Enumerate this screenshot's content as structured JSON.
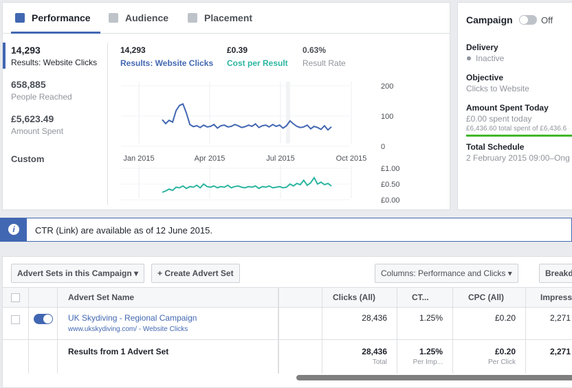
{
  "tabs": [
    "Performance",
    "Audience",
    "Placement"
  ],
  "summary": [
    {
      "value": "14,293",
      "label": "Results: Website Clicks"
    },
    {
      "value": "658,885",
      "label": "People Reached"
    },
    {
      "value": "£5,623.49",
      "label": "Amount Spent"
    }
  ],
  "custom": "Custom",
  "metrics": [
    {
      "value": "14,293",
      "label": "Results: Website Clicks"
    },
    {
      "value": "£0.39",
      "label": "Cost per Result"
    },
    {
      "value": "0.63%",
      "label": "Result Rate"
    }
  ],
  "chart": {
    "type": "line",
    "categories": [
      "Jan 2015",
      "Apr 2015",
      "Jul 2015",
      "Oct 2015"
    ],
    "clicks": {
      "color": "#4267b2",
      "ylim": [
        0,
        200
      ],
      "yticks": [
        0,
        100,
        200
      ],
      "values": [
        88,
        75,
        86,
        80,
        118,
        135,
        140,
        110,
        72,
        65,
        68,
        62,
        70,
        64,
        66,
        72,
        60,
        68,
        70,
        64,
        66,
        72,
        68,
        62,
        65,
        70,
        66,
        74,
        62,
        68,
        70,
        64,
        72,
        66,
        70,
        60,
        68,
        84,
        74,
        66,
        62,
        64,
        70,
        58,
        66,
        62,
        56,
        68,
        54,
        64
      ]
    },
    "cost": {
      "color": "#2bb5a0",
      "ylim": [
        0,
        1
      ],
      "yticks": [
        {
          "value": 0,
          "label": "£0.00"
        },
        {
          "value": 0.5,
          "label": "£0.50"
        },
        {
          "value": 1,
          "label": "£1.00"
        }
      ],
      "values": [
        0.24,
        0.28,
        0.34,
        0.3,
        0.4,
        0.38,
        0.44,
        0.36,
        0.42,
        0.4,
        0.46,
        0.38,
        0.5,
        0.42,
        0.4,
        0.44,
        0.38,
        0.42,
        0.4,
        0.46,
        0.38,
        0.42,
        0.44,
        0.4,
        0.38,
        0.42,
        0.4,
        0.44,
        0.36,
        0.42,
        0.4,
        0.44,
        0.38,
        0.4,
        0.42,
        0.38,
        0.4,
        0.5,
        0.44,
        0.52,
        0.48,
        0.62,
        0.46,
        0.54,
        0.7,
        0.5,
        0.56,
        0.48,
        0.52,
        0.44
      ]
    }
  },
  "campaign": {
    "title": "Campaign",
    "toggle": "Off",
    "fields": [
      {
        "label": "Delivery",
        "lines": [
          "Inactive"
        ]
      },
      {
        "label": "Objective",
        "lines": [
          "Clicks to Website"
        ]
      },
      {
        "label": "Amount Spent Today",
        "lines": [
          "£0.00 spent today",
          "£6,436.60 total spent of £6,436.6"
        ]
      },
      {
        "label": "Total Schedule",
        "lines": [
          "2 February 2015 09:00–Ong"
        ]
      }
    ]
  },
  "notice": {
    "icon": "i",
    "text": "CTR (Link) are available as of 12 June 2015."
  },
  "toolbar": {
    "adsets": "Advert Sets in this Campaign",
    "create": "Create Advert Set",
    "columns": "Columns: Performance and Clicks",
    "breakdown": "Breakd"
  },
  "table": {
    "headers": [
      "Advert Set Name",
      "Clicks (All)",
      "CT...",
      "CPC (All)",
      "Impress..."
    ],
    "rows": [
      {
        "name": "UK Skydiving - Regional Campaign",
        "sub": "www.ukskydiving.com/ - Website Clicks",
        "cells": [
          "28,436",
          "1.25%",
          "£0.20",
          "2,271"
        ]
      }
    ],
    "totals": {
      "label": "Results from 1 Advert Set",
      "cells": [
        {
          "value": "28,436",
          "sub": "Total"
        },
        {
          "value": "1.25%",
          "sub": "Per Imp..."
        },
        {
          "value": "£0.20",
          "sub": "Per Click"
        },
        {
          "value": "2,271"
        }
      ]
    }
  }
}
